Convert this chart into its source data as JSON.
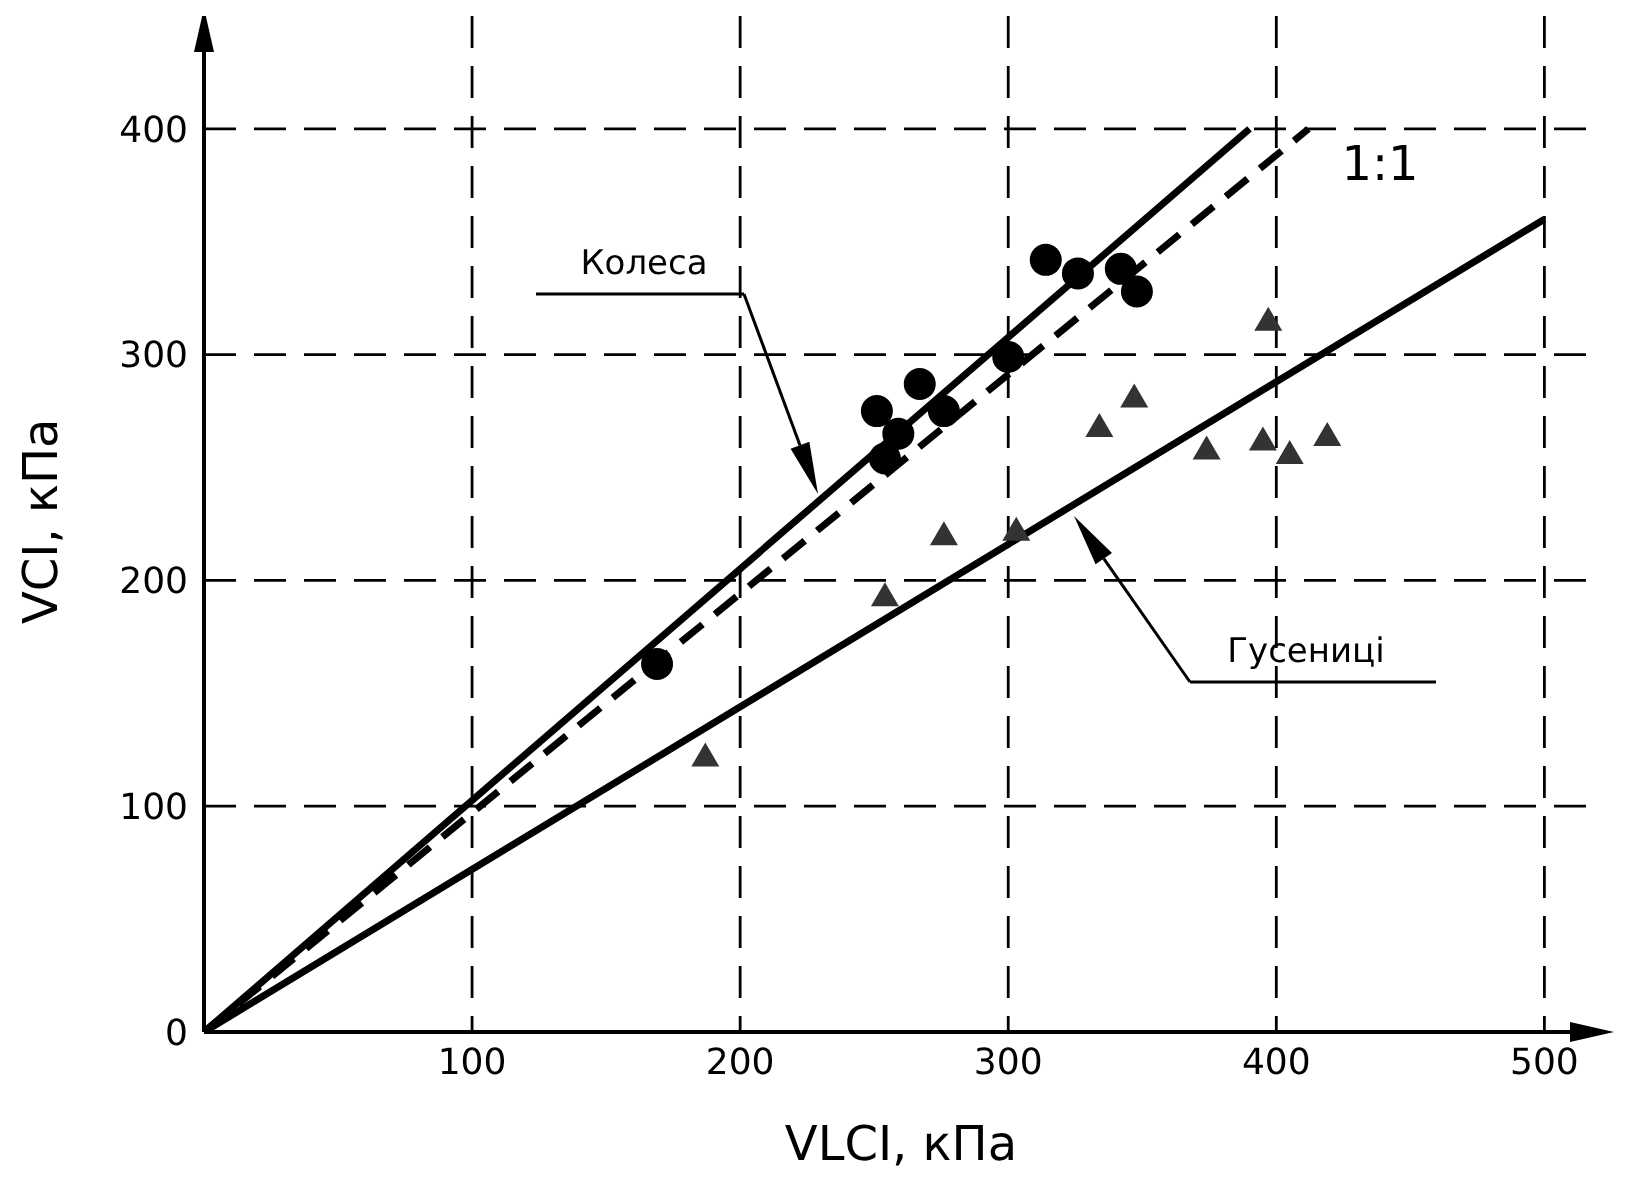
{
  "chart_data": {
    "type": "scatter",
    "xlabel": "VLCI, кПа",
    "ylabel": "VCI, кПа",
    "xlim": [
      0,
      520
    ],
    "ylim": [
      0,
      450
    ],
    "xticks": [
      100,
      200,
      300,
      400,
      500
    ],
    "yticks": [
      0,
      100,
      200,
      300,
      400
    ],
    "grid": true,
    "legend": false,
    "series": [
      {
        "type": "scatter",
        "marker": "circle",
        "color": "#000000",
        "x": [
          169,
          251,
          259,
          254,
          267,
          276,
          300,
          314,
          326,
          342,
          348
        ],
        "values": [
          163,
          275,
          265,
          254,
          287,
          275,
          299,
          342,
          336,
          338,
          328
        ]
      },
      {
        "type": "scatter",
        "marker": "triangle",
        "color": "#333333",
        "x": [
          187,
          254,
          276,
          303,
          334,
          347,
          374,
          395,
          397,
          405,
          419
        ],
        "values": [
          122,
          193,
          220,
          222,
          268,
          281,
          258,
          262,
          315,
          256,
          264
        ]
      },
      {
        "type": "line",
        "color": "#000000",
        "line_style": "solid",
        "x": [
          0,
          390
        ],
        "values": [
          0,
          400
        ]
      },
      {
        "type": "line",
        "color": "#000000",
        "line_style": "dashed",
        "x": [
          0,
          412
        ],
        "values": [
          0,
          400
        ]
      },
      {
        "type": "line",
        "color": "#000000",
        "line_style": "solid",
        "x": [
          0,
          500
        ],
        "values": [
          0,
          360
        ]
      }
    ],
    "annotations": [
      "Колеса",
      "Гусениці",
      "1:1"
    ]
  }
}
